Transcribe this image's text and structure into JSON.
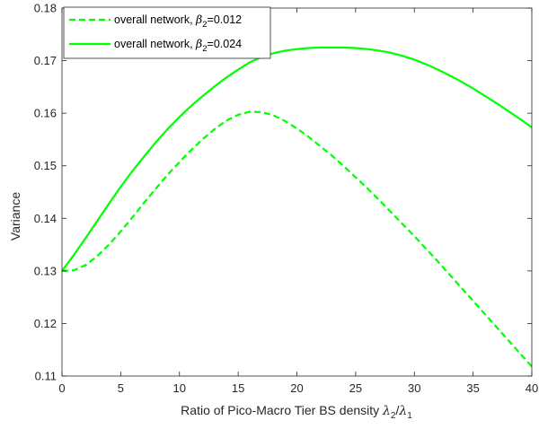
{
  "chart_data": {
    "type": "line",
    "title": "",
    "xlabel": "Ratio of Pico-Macro Tier BS density λ2/λ1",
    "xlabel_parts": {
      "prefix": "Ratio of Pico-Macro Tier BS density ",
      "sym1": "λ",
      "sub1": "2",
      "slash": "/",
      "sym2": "λ",
      "sub2": "1"
    },
    "ylabel": "Variance",
    "xlim": [
      0,
      40
    ],
    "ylim": [
      0.11,
      0.18
    ],
    "xticks": [
      0,
      5,
      10,
      15,
      20,
      25,
      30,
      35,
      40
    ],
    "xtick_labels": [
      "0",
      "5",
      "10",
      "15",
      "20",
      "25",
      "30",
      "35",
      "40"
    ],
    "yticks": [
      0.11,
      0.12,
      0.13,
      0.14,
      0.15,
      0.16,
      0.17,
      0.18
    ],
    "ytick_labels": [
      "0.11",
      "0.12",
      "0.13",
      "0.14",
      "0.15",
      "0.16",
      "0.17",
      "0.18"
    ],
    "grid": false,
    "legend_position": "top-left",
    "series": [
      {
        "name": "overall network, β2=0.012",
        "legend_parts": {
          "prefix": "overall network, ",
          "sym": "β",
          "sub": "2",
          "suffix": "=0.012"
        },
        "style": "dashed",
        "color": "#00ff00",
        "x": [
          0,
          1,
          2,
          3,
          4,
          5,
          6,
          7,
          8,
          9,
          10,
          11,
          12,
          13,
          14,
          15,
          16,
          17,
          18,
          19,
          20,
          21,
          22,
          23,
          24,
          25,
          26,
          27,
          28,
          29,
          30,
          31,
          32,
          33,
          34,
          35,
          36,
          37,
          38,
          39,
          40
        ],
        "y": [
          0.13,
          0.1301,
          0.1311,
          0.1328,
          0.135,
          0.1375,
          0.1402,
          0.143,
          0.1457,
          0.1483,
          0.1507,
          0.153,
          0.1551,
          0.157,
          0.1586,
          0.1597,
          0.1603,
          0.1602,
          0.1596,
          0.1585,
          0.1571,
          0.1555,
          0.1537,
          0.1519,
          0.1499,
          0.1478,
          0.1457,
          0.1435,
          0.1412,
          0.1389,
          0.1366,
          0.1342,
          0.1318,
          0.1293,
          0.1268,
          0.1243,
          0.1218,
          0.1193,
          0.1168,
          0.1143,
          0.1118
        ]
      },
      {
        "name": "overall network, β2=0.024",
        "legend_parts": {
          "prefix": "overall network, ",
          "sym": "β",
          "sub": "2",
          "suffix": "=0.024"
        },
        "style": "solid",
        "color": "#00ff00",
        "x": [
          0,
          1,
          2,
          3,
          4,
          5,
          6,
          7,
          8,
          9,
          10,
          11,
          12,
          13,
          14,
          15,
          16,
          17,
          18,
          19,
          20,
          21,
          22,
          23,
          24,
          25,
          26,
          27,
          28,
          29,
          30,
          31,
          32,
          33,
          34,
          35,
          36,
          37,
          38,
          39,
          40
        ],
        "y": [
          0.13,
          0.133,
          0.1362,
          0.1395,
          0.1428,
          0.146,
          0.149,
          0.1518,
          0.1545,
          0.157,
          0.1593,
          0.1614,
          0.1633,
          0.1651,
          0.1668,
          0.1683,
          0.1697,
          0.1707,
          0.1714,
          0.1719,
          0.1722,
          0.1724,
          0.1725,
          0.1725,
          0.1725,
          0.1724,
          0.1722,
          0.1719,
          0.1715,
          0.1709,
          0.1702,
          0.1693,
          0.1683,
          0.1672,
          0.166,
          0.1647,
          0.1633,
          0.1619,
          0.1604,
          0.1589,
          0.1573
        ]
      }
    ]
  }
}
